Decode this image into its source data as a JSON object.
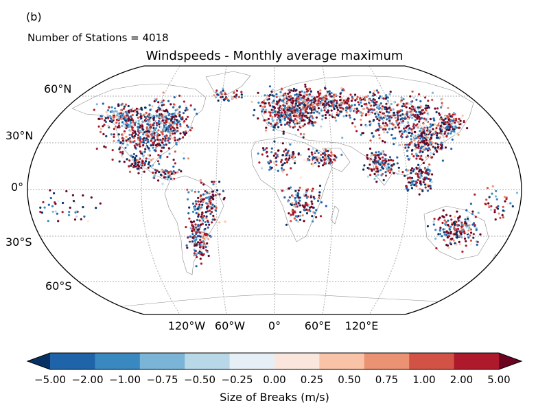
{
  "panel_label": "(b)",
  "station_count_text": "Number of Stations = 4018",
  "title": "Windspeeds - Monthly average maximum",
  "lat_labels": [
    "60°N",
    "30°N",
    "0°",
    "30°S",
    "60°S"
  ],
  "lon_labels": [
    "120°W",
    "60°W",
    "0°",
    "60°E",
    "120°E"
  ],
  "colorbar": {
    "label": "Size of Breaks (m/s)",
    "ticks": [
      "−5.00",
      "−2.00",
      "−1.00",
      "−0.75",
      "−0.50",
      "−0.25",
      "0.00",
      "0.25",
      "0.50",
      "0.75",
      "1.00",
      "2.00",
      "5.00"
    ],
    "boundaries": [
      -5.0,
      -2.0,
      -1.0,
      -0.75,
      -0.5,
      -0.25,
      0.0,
      0.25,
      0.5,
      0.75,
      1.0,
      2.0,
      5.0
    ],
    "colors": [
      "#053061",
      "#2166ac",
      "#4393c3",
      "#92c5de",
      "#d1e5f0",
      "#f7f7f7",
      "#fddbc7",
      "#f4a582",
      "#d6604d",
      "#b2182b",
      "#67001f"
    ],
    "colors_display": [
      "#073064",
      "#1f63a8",
      "#3a88c0",
      "#7ab5d7",
      "#b8d8e8",
      "#e6eff6",
      "#fbe6dd",
      "#f8c3a6",
      "#eb9272",
      "#d25346",
      "#ae1a2c",
      "#6b0321"
    ],
    "extend": "both"
  }
}
